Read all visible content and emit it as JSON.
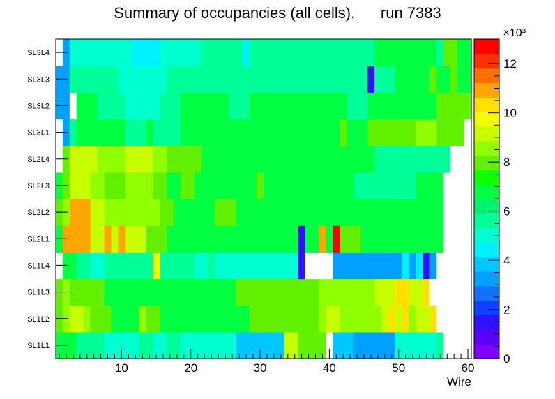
{
  "chart_data": {
    "type": "heatmap",
    "title": "Summary of occupancies (all cells),      run 7383",
    "xlabel": "Wire",
    "x_range": [
      0.5,
      60.5
    ],
    "x_ticks": [
      10,
      20,
      30,
      40,
      50,
      60
    ],
    "rows": [
      "SL1L1",
      "SL1L2",
      "SL1L3",
      "SL1L4",
      "SL2L1",
      "SL2L2",
      "SL2L3",
      "SL2L4",
      "SL3L1",
      "SL3L2",
      "SL3L3",
      "SL3L4"
    ],
    "z_range": [
      0,
      13000
    ],
    "z_ticks": [
      0,
      2,
      4,
      6,
      8,
      10,
      12
    ],
    "z_exponent": "×10³",
    "palette": [
      "#8000ff",
      "#5a00ff",
      "#2f10ff",
      "#1040ff",
      "#1070ff",
      "#00a0ff",
      "#00c8ff",
      "#00f0ff",
      "#00ffd0",
      "#00ff99",
      "#00f070",
      "#00ff40",
      "#10ff00",
      "#60f000",
      "#90ff00",
      "#c8ff00",
      "#f0ff00",
      "#ffe000",
      "#ffa500",
      "#ff7000",
      "#ff3000",
      "#ff0000"
    ],
    "empty_color": "#ffffff",
    "values_k": [
      [
        6.9,
        6.9,
        6.9,
        5.9,
        5.9,
        5.9,
        5.9,
        4.9,
        4.9,
        4.9,
        4.9,
        4.9,
        5.9,
        5.9,
        4.9,
        4.9,
        5.9,
        5.9,
        4.9,
        4.9,
        4.9,
        4.9,
        4.9,
        4.9,
        4.9,
        4.9,
        4.1,
        4.1,
        4.1,
        4.1,
        4.1,
        4.1,
        4.1,
        9.1,
        9.1,
        8.2,
        8.2,
        8.2,
        8.2,
        null,
        4.0,
        4.0,
        4.0,
        3.5,
        3.5,
        3.5,
        3.5,
        3.5,
        3.5,
        4.9,
        4.9,
        4.9,
        4.9,
        4.9,
        4.9,
        5.9,
        null,
        null,
        null,
        null
      ],
      [
        7.9,
        8.5,
        9.4,
        9.4,
        8.5,
        7.9,
        7.9,
        7.9,
        6.9,
        6.9,
        6.9,
        6.9,
        8.5,
        7.9,
        7.9,
        6.9,
        6.9,
        6.9,
        6.9,
        6.9,
        6.9,
        6.9,
        6.9,
        6.9,
        6.9,
        6.9,
        6.9,
        6.9,
        7.9,
        7.9,
        7.9,
        7.9,
        7.9,
        7.9,
        7.9,
        7.9,
        7.9,
        7.9,
        8.5,
        9.1,
        9.1,
        8.5,
        8.5,
        8.5,
        8.5,
        8.5,
        8.5,
        9.4,
        10.6,
        9.4,
        10.6,
        8.5,
        9.1,
        9.4,
        10.6,
        null,
        null,
        null,
        null,
        null
      ],
      [
        7.9,
        8.5,
        7.9,
        7.9,
        7.9,
        7.9,
        7.9,
        6.9,
        6.9,
        6.9,
        6.5,
        6.5,
        6.5,
        6.5,
        6.5,
        6.9,
        6.9,
        6.9,
        6.9,
        6.9,
        6.9,
        6.9,
        6.9,
        6.9,
        6.9,
        6.9,
        7.9,
        7.9,
        7.9,
        7.9,
        7.9,
        7.9,
        7.9,
        7.9,
        7.9,
        7.9,
        7.9,
        7.9,
        8.5,
        8.5,
        8.5,
        8.5,
        8.5,
        8.5,
        8.5,
        8.5,
        9.1,
        9.4,
        9.4,
        10.6,
        10.6,
        9.4,
        9.4,
        10.6,
        null,
        null,
        null,
        null,
        null,
        null
      ],
      [
        null,
        6.9,
        6.9,
        5.9,
        5.9,
        5.2,
        5.2,
        5.9,
        5.9,
        5.9,
        5.9,
        5.9,
        5.9,
        5.9,
        9.5,
        5.9,
        5.9,
        5.9,
        5.9,
        5.9,
        5.2,
        5.2,
        5.9,
        4.8,
        4.8,
        4.8,
        4.8,
        4.8,
        4.8,
        4.8,
        4.8,
        4.8,
        4.8,
        4.8,
        5.2,
        1.4,
        null,
        null,
        null,
        null,
        3.4,
        3.4,
        3.4,
        3.4,
        3.4,
        3.4,
        3.4,
        3.4,
        3.4,
        3.4,
        4.2,
        3.2,
        4.2,
        1.2,
        3.4,
        null,
        null,
        null,
        null,
        null
      ],
      [
        6.9,
        11.2,
        11.2,
        11.2,
        11.2,
        9.4,
        9.4,
        11.2,
        9.4,
        11.2,
        9.1,
        9.1,
        9.1,
        7.9,
        7.9,
        7.9,
        6.9,
        6.9,
        6.9,
        6.9,
        6.9,
        6.9,
        6.9,
        6.9,
        6.9,
        6.9,
        6.9,
        6.9,
        6.9,
        6.9,
        6.9,
        6.9,
        6.9,
        6.9,
        6.9,
        1.4,
        6.9,
        6.9,
        11.2,
        6.9,
        12.9,
        7.9,
        7.9,
        7.9,
        6.9,
        6.9,
        6.9,
        6.9,
        6.9,
        6.9,
        6.9,
        6.9,
        6.9,
        6.9,
        6.9,
        6.9,
        null,
        null,
        null,
        null
      ],
      [
        7.9,
        8.5,
        11.2,
        11.2,
        11.2,
        9.1,
        9.1,
        8.5,
        8.5,
        8.5,
        8.5,
        8.5,
        8.5,
        8.5,
        8.5,
        7.9,
        7.9,
        6.9,
        6.9,
        6.9,
        6.9,
        6.9,
        6.9,
        7.9,
        7.9,
        7.9,
        6.9,
        6.9,
        6.9,
        6.9,
        6.9,
        6.9,
        6.9,
        6.9,
        6.9,
        6.9,
        6.9,
        6.9,
        6.9,
        6.9,
        6.9,
        6.9,
        6.9,
        6.9,
        6.9,
        6.9,
        6.9,
        6.9,
        6.9,
        6.9,
        6.9,
        6.9,
        6.9,
        6.9,
        6.9,
        6.9,
        null,
        null,
        null,
        null
      ],
      [
        6.9,
        7.9,
        9.4,
        9.4,
        9.4,
        8.5,
        8.5,
        7.9,
        7.9,
        7.9,
        8.5,
        8.5,
        8.5,
        8.5,
        7.9,
        7.9,
        6.9,
        6.9,
        7.9,
        7.9,
        6.9,
        6.9,
        6.9,
        6.9,
        6.9,
        6.9,
        6.9,
        6.9,
        6.9,
        7.9,
        6.9,
        6.9,
        6.9,
        6.9,
        6.9,
        6.9,
        6.9,
        6.9,
        6.9,
        6.9,
        6.9,
        6.9,
        6.9,
        5.9,
        5.9,
        5.9,
        5.9,
        5.9,
        5.9,
        5.9,
        5.9,
        5.9,
        6.9,
        6.9,
        6.9,
        6.9,
        null,
        null,
        null,
        null
      ],
      [
        null,
        7.9,
        9.4,
        9.4,
        9.4,
        9.4,
        8.5,
        8.5,
        8.5,
        8.5,
        9.1,
        9.1,
        9.1,
        9.1,
        8.5,
        8.5,
        7.9,
        7.9,
        7.9,
        7.9,
        7.9,
        6.9,
        6.9,
        6.9,
        6.9,
        6.9,
        6.9,
        6.9,
        6.9,
        6.9,
        6.9,
        6.9,
        6.9,
        6.9,
        6.9,
        6.9,
        6.9,
        6.9,
        6.9,
        6.9,
        6.9,
        6.9,
        6.9,
        6.9,
        6.9,
        6.9,
        5.9,
        5.9,
        5.9,
        5.9,
        5.9,
        5.9,
        5.9,
        5.9,
        5.9,
        5.9,
        5.9,
        null,
        null,
        null
      ],
      [
        null,
        3.4,
        5.9,
        6.9,
        6.9,
        6.9,
        6.9,
        6.9,
        6.9,
        6.9,
        5.9,
        5.9,
        5.9,
        6.9,
        5.9,
        5.9,
        5.9,
        5.9,
        6.9,
        6.9,
        6.9,
        6.9,
        6.9,
        6.9,
        6.9,
        6.9,
        6.9,
        6.9,
        6.9,
        6.9,
        6.9,
        6.9,
        6.9,
        6.9,
        6.9,
        6.9,
        6.9,
        6.9,
        6.9,
        6.9,
        6.9,
        7.9,
        6.9,
        6.9,
        6.9,
        7.9,
        7.9,
        7.9,
        7.9,
        7.9,
        7.9,
        7.9,
        8.5,
        8.5,
        8.5,
        7.9,
        7.9,
        7.9,
        7.9,
        null
      ],
      [
        3.4,
        3.4,
        null,
        6.9,
        6.9,
        6.9,
        5.9,
        5.9,
        5.9,
        5.9,
        4.9,
        4.9,
        4.9,
        4.9,
        4.9,
        5.9,
        5.9,
        5.9,
        6.9,
        6.9,
        6.9,
        6.9,
        6.9,
        6.9,
        6.9,
        5.9,
        5.9,
        5.9,
        6.9,
        6.9,
        6.9,
        6.9,
        6.9,
        6.9,
        6.9,
        6.9,
        6.9,
        6.9,
        6.9,
        6.9,
        6.9,
        6.9,
        5.9,
        5.9,
        5.9,
        6.9,
        6.9,
        6.9,
        6.9,
        6.9,
        6.9,
        6.9,
        6.9,
        6.9,
        6.9,
        7.9,
        7.9,
        7.9,
        7.9,
        7.9
      ],
      [
        3.4,
        3.4,
        5.9,
        5.9,
        5.9,
        5.9,
        5.9,
        5.9,
        5.9,
        4.9,
        4.9,
        4.9,
        4.9,
        4.9,
        4.9,
        4.9,
        5.9,
        5.9,
        5.9,
        5.9,
        5.9,
        5.9,
        5.9,
        5.9,
        5.9,
        5.9,
        5.9,
        5.9,
        5.9,
        5.9,
        5.9,
        5.9,
        5.9,
        5.9,
        5.9,
        5.9,
        5.9,
        5.9,
        5.9,
        5.9,
        5.9,
        5.9,
        5.9,
        5.9,
        5.9,
        1.4,
        5.9,
        5.9,
        5.9,
        6.9,
        6.9,
        6.9,
        6.9,
        6.9,
        7.9,
        6.9,
        6.9,
        7.9,
        6.9,
        6.9
      ],
      [
        null,
        3.4,
        5.2,
        5.2,
        5.2,
        4.9,
        4.9,
        4.9,
        4.9,
        4.9,
        4.9,
        4.6,
        4.6,
        4.6,
        4.6,
        4.9,
        4.9,
        4.9,
        4.9,
        4.9,
        4.9,
        5.9,
        5.9,
        5.9,
        5.9,
        5.9,
        5.9,
        4.6,
        5.9,
        5.9,
        5.9,
        5.9,
        5.9,
        5.9,
        5.9,
        5.9,
        5.9,
        5.9,
        5.9,
        5.9,
        5.9,
        5.9,
        5.9,
        5.9,
        5.9,
        5.9,
        6.9,
        6.9,
        6.9,
        6.9,
        6.9,
        6.9,
        6.9,
        6.9,
        6.9,
        5.9,
        7.9,
        7.9,
        6.9,
        6.9
      ]
    ]
  }
}
